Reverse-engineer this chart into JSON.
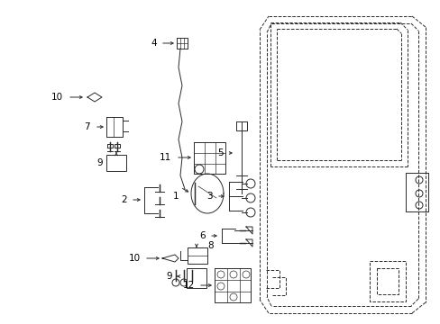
{
  "background_color": "#ffffff",
  "line_color": "#2a2a2a",
  "label_color": "#000000",
  "fig_width": 4.89,
  "fig_height": 3.6,
  "dpi": 100,
  "lw": 0.7,
  "font_size": 7.5
}
